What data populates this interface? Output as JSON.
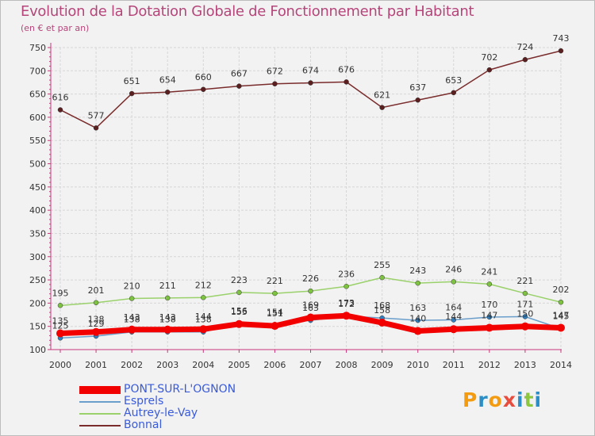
{
  "page": {
    "title": "Evolution de la Dotation Globale de Fonctionnement par Habitant",
    "subtitle": "(en € et par an)"
  },
  "logo": {
    "letters": [
      "P",
      "r",
      "o",
      "x",
      "i",
      "t",
      "i"
    ],
    "colors": [
      "#f39c12",
      "#2c8ec6",
      "#f39c12",
      "#e84c3d",
      "#2c8ec6",
      "#8dc63f",
      "#2c8ec6"
    ]
  },
  "chart_data": {
    "type": "line",
    "title": "Evolution de la Dotation Globale de Fonctionnement par Habitant",
    "ylabel": "(en € et par an)",
    "xlabel": "",
    "x": [
      "2000",
      "2001",
      "2002",
      "2003",
      "2004",
      "2005",
      "2006",
      "2007",
      "2008",
      "2009",
      "2010",
      "2011",
      "2012",
      "2013",
      "2014"
    ],
    "ylim": [
      100,
      750
    ],
    "yticks": [
      100,
      150,
      200,
      250,
      300,
      350,
      400,
      450,
      500,
      550,
      600,
      650,
      700,
      750
    ],
    "grid": true,
    "legend_position": "bottom-left",
    "series": [
      {
        "name": "Bonnal",
        "color": "#7a2c2c",
        "marker": "#5c1f1f",
        "width": 1.5,
        "labels": true,
        "values": [
          616,
          577,
          651,
          654,
          660,
          667,
          672,
          674,
          676,
          621,
          637,
          653,
          702,
          724,
          743
        ]
      },
      {
        "name": "Autrey-le-Vay",
        "color": "#9ad16b",
        "marker": "#7ec241",
        "width": 1.5,
        "labels": true,
        "values": [
          195,
          201,
          210,
          211,
          212,
          223,
          221,
          226,
          236,
          255,
          243,
          246,
          241,
          221,
          202
        ]
      },
      {
        "name": "Esprels",
        "color": "#6a9ecb",
        "marker": "#2f7fc1",
        "width": 1.5,
        "labels": true,
        "values": [
          125,
          129,
          138,
          138,
          138,
          156,
          154,
          163,
          172,
          168,
          163,
          164,
          170,
          171,
          145
        ]
      },
      {
        "name": "PONT-SUR-L'OGNON",
        "color": "#f20000",
        "marker": "#f20000",
        "width": 7,
        "labels": true,
        "values": [
          135,
          138,
          143,
          143,
          144,
          155,
          151,
          169,
          173,
          158,
          140,
          144,
          147,
          150,
          147
        ]
      }
    ],
    "legend": [
      {
        "name": "PONT-SUR-L'OGNON",
        "color": "#f20000",
        "swatch_width": 10
      },
      {
        "name": "Esprels",
        "color": "#6a9ecb",
        "swatch_width": 2
      },
      {
        "name": "Autrey-le-Vay",
        "color": "#9ad16b",
        "swatch_width": 2
      },
      {
        "name": "Bonnal",
        "color": "#7a2c2c",
        "swatch_width": 2
      }
    ]
  }
}
